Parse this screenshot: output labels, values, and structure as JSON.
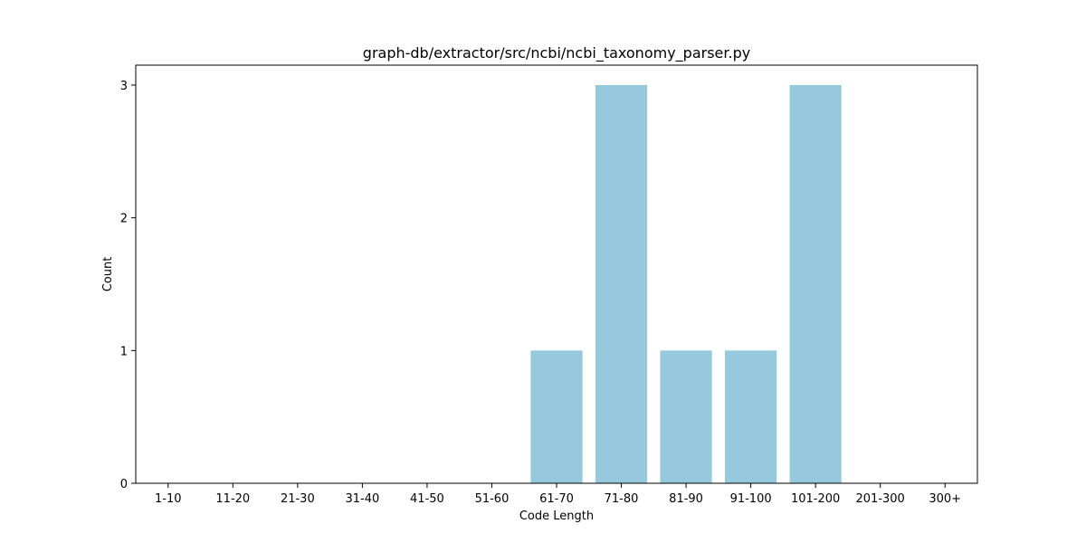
{
  "chart_data": {
    "type": "bar",
    "title": "graph-db/extractor/src/ncbi/ncbi_taxonomy_parser.py",
    "xlabel": "Code Length",
    "ylabel": "Count",
    "categories": [
      "1-10",
      "11-20",
      "21-30",
      "31-40",
      "41-50",
      "51-60",
      "61-70",
      "71-80",
      "81-90",
      "91-100",
      "101-200",
      "201-300",
      "300+"
    ],
    "values": [
      0,
      0,
      0,
      0,
      0,
      0,
      1,
      3,
      1,
      1,
      3,
      0,
      0
    ],
    "ylim": [
      0,
      3.15
    ],
    "yticks": [
      0,
      1,
      2,
      3
    ],
    "bar_color": "#96c9dc",
    "grid": false,
    "legend": "none"
  }
}
